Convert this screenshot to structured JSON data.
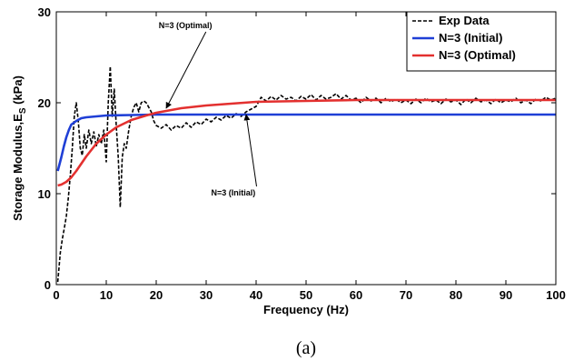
{
  "chart_data": {
    "type": "line",
    "xlabel": "Frequency (Hz)",
    "ylabel_main": "Storage Modulus,E",
    "ylabel_sub": "S",
    "ylabel_tail": " (kPa)",
    "xlim": [
      0,
      100
    ],
    "ylim": [
      0,
      30
    ],
    "xticks": [
      0,
      10,
      20,
      30,
      40,
      50,
      60,
      70,
      80,
      90,
      100
    ],
    "yticks": [
      0,
      10,
      20,
      30
    ],
    "grid": false,
    "legend_position": "top-right",
    "series": [
      {
        "name": "Exp Data",
        "color": "#000000",
        "style": "dashed",
        "points": [
          [
            0.3,
            0.3
          ],
          [
            0.8,
            3.5
          ],
          [
            1.2,
            5.0
          ],
          [
            1.6,
            6.2
          ],
          [
            2.0,
            7.5
          ],
          [
            2.4,
            9.5
          ],
          [
            2.8,
            12.0
          ],
          [
            3.2,
            15.0
          ],
          [
            3.6,
            18.5
          ],
          [
            4.0,
            20.0
          ],
          [
            4.4,
            18.0
          ],
          [
            4.8,
            15.0
          ],
          [
            5.2,
            14.2
          ],
          [
            5.6,
            16.5
          ],
          [
            6.0,
            15.0
          ],
          [
            6.5,
            17.0
          ],
          [
            7.0,
            15.5
          ],
          [
            7.5,
            16.8
          ],
          [
            8.0,
            15.2
          ],
          [
            8.5,
            16.5
          ],
          [
            9.0,
            15.5
          ],
          [
            9.5,
            17.0
          ],
          [
            10.0,
            13.5
          ],
          [
            10.4,
            20.0
          ],
          [
            10.8,
            24.0
          ],
          [
            11.2,
            18.5
          ],
          [
            11.6,
            21.5
          ],
          [
            12.0,
            17.5
          ],
          [
            12.4,
            14.0
          ],
          [
            12.8,
            8.5
          ],
          [
            13.2,
            14.0
          ],
          [
            13.6,
            15.5
          ],
          [
            14.0,
            15.0
          ],
          [
            14.5,
            17.0
          ],
          [
            15.0,
            18.5
          ],
          [
            15.5,
            19.5
          ],
          [
            16.0,
            20.0
          ],
          [
            16.5,
            19.0
          ],
          [
            17.0,
            20.0
          ],
          [
            17.5,
            20.2
          ],
          [
            18.0,
            20.0
          ],
          [
            18.5,
            19.5
          ],
          [
            19.0,
            19.0
          ],
          [
            19.5,
            18.0
          ],
          [
            20.0,
            17.5
          ],
          [
            21.0,
            17.2
          ],
          [
            22.0,
            17.6
          ],
          [
            23.0,
            17.0
          ],
          [
            24.0,
            17.5
          ],
          [
            25.0,
            17.2
          ],
          [
            26.0,
            17.8
          ],
          [
            27.0,
            17.3
          ],
          [
            28.0,
            17.9
          ],
          [
            29.0,
            17.6
          ],
          [
            30.0,
            18.2
          ],
          [
            31.0,
            17.9
          ],
          [
            32.0,
            18.4
          ],
          [
            33.0,
            18.1
          ],
          [
            34.0,
            18.6
          ],
          [
            35.0,
            18.3
          ],
          [
            36.0,
            18.8
          ],
          [
            37.0,
            18.5
          ],
          [
            38.0,
            19.0
          ],
          [
            39.0,
            19.3
          ],
          [
            40.0,
            19.6
          ],
          [
            41.0,
            20.6
          ],
          [
            42.0,
            20.2
          ],
          [
            43.0,
            20.7
          ],
          [
            44.0,
            20.3
          ],
          [
            45.0,
            20.8
          ],
          [
            46.0,
            20.4
          ],
          [
            47.0,
            20.6
          ],
          [
            48.0,
            20.2
          ],
          [
            49.0,
            20.7
          ],
          [
            50.0,
            20.4
          ],
          [
            51.0,
            20.9
          ],
          [
            52.0,
            20.3
          ],
          [
            53.0,
            20.8
          ],
          [
            54.0,
            20.4
          ],
          [
            55.0,
            20.6
          ],
          [
            56.0,
            21.0
          ],
          [
            57.0,
            20.4
          ],
          [
            58.0,
            20.8
          ],
          [
            59.0,
            20.3
          ],
          [
            60.0,
            20.5
          ],
          [
            61.0,
            20.0
          ],
          [
            62.0,
            20.6
          ],
          [
            63.0,
            20.2
          ],
          [
            64.0,
            20.5
          ],
          [
            65.0,
            20.0
          ],
          [
            66.0,
            20.5
          ],
          [
            67.0,
            20.1
          ],
          [
            68.0,
            20.4
          ],
          [
            69.0,
            20.0
          ],
          [
            70.0,
            20.3
          ],
          [
            71.0,
            19.9
          ],
          [
            72.0,
            20.4
          ],
          [
            73.0,
            20.0
          ],
          [
            74.0,
            20.5
          ],
          [
            75.0,
            20.1
          ],
          [
            76.0,
            20.3
          ],
          [
            77.0,
            19.9
          ],
          [
            78.0,
            20.4
          ],
          [
            79.0,
            20.1
          ],
          [
            80.0,
            20.3
          ],
          [
            81.0,
            19.8
          ],
          [
            82.0,
            20.4
          ],
          [
            83.0,
            20.0
          ],
          [
            84.0,
            20.5
          ],
          [
            85.0,
            20.1
          ],
          [
            86.0,
            20.3
          ],
          [
            87.0,
            19.9
          ],
          [
            88.0,
            20.4
          ],
          [
            89.0,
            20.0
          ],
          [
            90.0,
            20.3
          ],
          [
            91.0,
            20.1
          ],
          [
            92.0,
            20.5
          ],
          [
            93.0,
            20.0
          ],
          [
            94.0,
            20.3
          ],
          [
            95.0,
            19.9
          ],
          [
            96.0,
            20.4
          ],
          [
            97.0,
            20.2
          ],
          [
            98.0,
            20.6
          ],
          [
            99.0,
            20.3
          ],
          [
            100.0,
            20.5
          ]
        ]
      },
      {
        "name": "N=3 (Initial)",
        "color": "#1f3fd6",
        "style": "solid",
        "points": [
          [
            0.3,
            12.5
          ],
          [
            1.0,
            14.0
          ],
          [
            1.5,
            15.2
          ],
          [
            2.0,
            16.2
          ],
          [
            2.5,
            17.0
          ],
          [
            3.0,
            17.6
          ],
          [
            4.0,
            18.0
          ],
          [
            5.0,
            18.3
          ],
          [
            6.0,
            18.4
          ],
          [
            8.0,
            18.5
          ],
          [
            10.0,
            18.6
          ],
          [
            15.0,
            18.65
          ],
          [
            20.0,
            18.7
          ],
          [
            30.0,
            18.7
          ],
          [
            40.0,
            18.7
          ],
          [
            50.0,
            18.7
          ],
          [
            60.0,
            18.7
          ],
          [
            70.0,
            18.7
          ],
          [
            80.0,
            18.7
          ],
          [
            90.0,
            18.7
          ],
          [
            100.0,
            18.7
          ]
        ]
      },
      {
        "name": "N=3 (Optimal)",
        "color": "#e3302f",
        "style": "solid",
        "points": [
          [
            0.3,
            10.9
          ],
          [
            1.0,
            11.0
          ],
          [
            2.0,
            11.3
          ],
          [
            3.0,
            11.8
          ],
          [
            4.0,
            12.5
          ],
          [
            5.0,
            13.3
          ],
          [
            6.0,
            14.1
          ],
          [
            7.0,
            14.8
          ],
          [
            8.0,
            15.5
          ],
          [
            10.0,
            16.5
          ],
          [
            12.0,
            17.3
          ],
          [
            15.0,
            18.1
          ],
          [
            18.0,
            18.6
          ],
          [
            20.0,
            18.9
          ],
          [
            25.0,
            19.4
          ],
          [
            30.0,
            19.7
          ],
          [
            35.0,
            19.9
          ],
          [
            40.0,
            20.1
          ],
          [
            50.0,
            20.2
          ],
          [
            60.0,
            20.3
          ],
          [
            70.0,
            20.3
          ],
          [
            80.0,
            20.3
          ],
          [
            90.0,
            20.3
          ],
          [
            100.0,
            20.3
          ]
        ]
      }
    ],
    "annotations": [
      {
        "text": "N=3 (Optimal)",
        "label_at": [
          20.5,
          28.2
        ],
        "arrow_to": [
          22.0,
          19.4
        ]
      },
      {
        "text": "N=3 (Initial)",
        "label_at": [
          31.0,
          9.8
        ],
        "arrow_to": [
          38.0,
          18.7
        ]
      }
    ]
  },
  "caption": "(a)"
}
